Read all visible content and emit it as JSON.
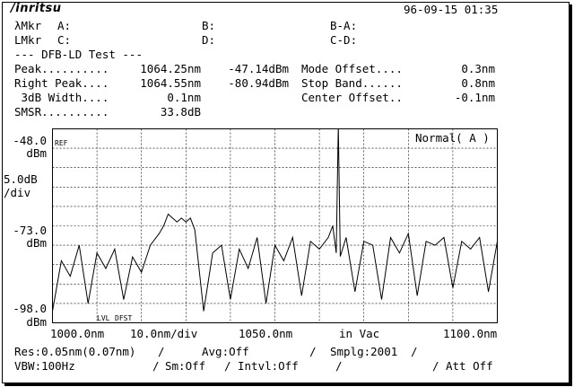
{
  "header": {
    "logo": "/inritsu",
    "datetime": "96-09-15 01:35"
  },
  "markers": {
    "lambda_label": "λMkr",
    "lambda_a": "A:",
    "lambda_b": "B:",
    "lambda_ba": "B-A:",
    "l_label": "LMkr",
    "l_c": "C:",
    "l_d": "D:",
    "l_cd": "C-D:"
  },
  "test": {
    "title": "--- DFB-LD Test ---",
    "rows": [
      {
        "label": "Peak..........",
        "wl": "1064.25nm",
        "level": "-47.14dBm",
        "p_label": "Mode Offset....",
        "p_value": "0.3nm"
      },
      {
        "label": "Right Peak....",
        "wl": "1064.55nm",
        "level": "-80.94dBm",
        "p_label": "Stop Band......",
        "p_value": "0.8nm"
      },
      {
        "label": " 3dB Width....",
        "wl": "0.1nm",
        "level": "",
        "p_label": "Center Offset..",
        "p_value": "-0.1nm"
      },
      {
        "label": "SMSR..........",
        "wl": "33.8dB",
        "level": "",
        "p_label": "",
        "p_value": ""
      }
    ]
  },
  "axis": {
    "top_value": "-48.0",
    "top_unit": "dBm",
    "scale_value": "5.0dB",
    "scale_unit": "/div",
    "mid_value": "-73.0",
    "mid_unit": "dBm",
    "bottom_value": "-98.0",
    "bottom_unit": "dBm",
    "ref_label": "REF",
    "mode_label": "Normal( A )",
    "lvl_label": "LVL",
    "dfst_label": "DFST",
    "x_start": "1000.0nm",
    "x_div": "10.0nm/div",
    "x_center": "1050.0nm",
    "x_medium": "in Vac",
    "x_stop": "1100.0nm"
  },
  "settings": {
    "res": "Res:0.05nm(0.07nm)",
    "avg": "Avg:Off",
    "smplg": "Smplg:2001",
    "vbw": "VBW:100Hz",
    "sm": "Sm:Off",
    "intvl": "Intvl:Off",
    "att": "Att Off"
  },
  "chart_data": {
    "type": "line",
    "xlabel": "",
    "ylabel": "",
    "xlim": [
      1000.0,
      1100.0
    ],
    "ylim": [
      -98.0,
      -48.0
    ],
    "grid": true,
    "x": [
      1000,
      1002,
      1004,
      1006,
      1008,
      1010,
      1012,
      1014,
      1016,
      1018,
      1020,
      1022,
      1024,
      1025,
      1026,
      1027,
      1028,
      1029,
      1030,
      1031,
      1032,
      1034,
      1036,
      1038,
      1040,
      1042,
      1044,
      1046,
      1048,
      1050,
      1052,
      1054,
      1056,
      1058,
      1060,
      1062,
      1063,
      1063.8,
      1064.25,
      1064.7,
      1066,
      1068,
      1070,
      1072,
      1074,
      1076,
      1078,
      1080,
      1082,
      1084,
      1086,
      1088,
      1090,
      1092,
      1094,
      1096,
      1098,
      1100
    ],
    "series": [
      {
        "values": [
          -95,
          -82,
          -86,
          -78,
          -93,
          -80,
          -84,
          -79,
          -92,
          -81,
          -85,
          -78,
          -75,
          -73,
          -70,
          -71,
          -72,
          -71,
          -72,
          -71,
          -74,
          -95,
          -80,
          -78,
          -92,
          -79,
          -84,
          -76,
          -93,
          -78,
          -82,
          -76,
          -91,
          -77,
          -79,
          -76,
          -73,
          -80,
          -47.1,
          -80.9,
          -76,
          -90,
          -77,
          -78,
          -92,
          -76,
          -80,
          -75,
          -91,
          -77,
          -78,
          -76,
          -89,
          -77,
          -79,
          -76,
          -90,
          -77
        ]
      }
    ]
  }
}
